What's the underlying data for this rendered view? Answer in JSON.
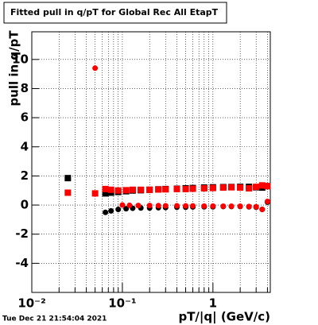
{
  "chart_data": {
    "type": "scatter",
    "title": "Fitted pull in q/pT for Global Rec All EtapT",
    "x_label": "pT/|q| (GeV/c)",
    "y_label": "pull in q/pT",
    "timestamp": "Tue Dec 21 21:54:04 2021",
    "xscale": "log",
    "xlim": [
      0.01,
      4.3
    ],
    "ylim": [
      -6,
      11.9
    ],
    "xticks": [
      {
        "value": 0.01,
        "label": "10⁻²"
      },
      {
        "value": 0.1,
        "label": "10⁻¹"
      },
      1
    ],
    "xminorticks": [
      0.02,
      0.03,
      0.04,
      0.05,
      0.06,
      0.07,
      0.08,
      0.09,
      0.2,
      0.3,
      0.4,
      0.5,
      0.6,
      0.7,
      0.8,
      0.9,
      2,
      3,
      4
    ],
    "yticks": [
      -4,
      -2,
      0,
      2,
      4,
      6,
      8,
      10
    ],
    "grid": true,
    "series": [
      {
        "color": "#000000",
        "marker": "square",
        "x": [
          0.025,
          0.065,
          0.075,
          0.09,
          0.11,
          0.13,
          0.16,
          0.2,
          0.25,
          0.3,
          0.4,
          0.5,
          0.6,
          0.8,
          1.0,
          1.3,
          1.6,
          2.0,
          2.5,
          3.0,
          3.5,
          4.0
        ],
        "values": [
          1.85,
          0.8,
          0.85,
          0.9,
          0.95,
          1.0,
          1.02,
          1.05,
          1.08,
          1.1,
          1.12,
          1.15,
          1.17,
          1.2,
          1.22,
          1.23,
          1.24,
          1.25,
          1.25,
          1.22,
          1.2,
          1.3
        ]
      },
      {
        "color": "#000000",
        "marker": "circle",
        "x": [
          0.065,
          0.075,
          0.09,
          0.11,
          0.13,
          0.16,
          0.2,
          0.25,
          0.3,
          0.4,
          0.5,
          0.6,
          0.8,
          1.0,
          1.3,
          1.6,
          2.0,
          2.5,
          3.0,
          3.5,
          4.0
        ],
        "values": [
          -0.5,
          -0.4,
          -0.3,
          -0.25,
          -0.22,
          -0.2,
          -0.2,
          -0.18,
          -0.17,
          -0.15,
          -0.15,
          -0.13,
          -0.12,
          -0.12,
          -0.1,
          -0.1,
          -0.1,
          -0.12,
          -0.15,
          -0.3,
          0.2
        ]
      },
      {
        "color": "#ff0000",
        "marker": "square",
        "x": [
          0.025,
          0.05,
          0.065,
          0.075,
          0.09,
          0.11,
          0.13,
          0.16,
          0.2,
          0.25,
          0.3,
          0.4,
          0.5,
          0.6,
          0.8,
          1.0,
          1.3,
          1.6,
          2.0,
          2.5,
          3.0,
          3.5,
          4.0
        ],
        "values": [
          0.85,
          0.8,
          1.1,
          1.05,
          1.0,
          1.02,
          1.05,
          1.05,
          1.05,
          1.07,
          1.08,
          1.1,
          1.1,
          1.12,
          1.15,
          1.17,
          1.2,
          1.22,
          1.2,
          1.15,
          1.25,
          1.35,
          1.3
        ]
      },
      {
        "color": "#ff0000",
        "marker": "circle",
        "x": [
          0.05,
          0.1,
          0.12,
          0.15,
          0.2,
          0.25,
          0.3,
          0.4,
          0.5,
          0.6,
          0.8,
          1.0,
          1.3,
          1.6,
          2.0,
          2.5,
          3.0,
          3.5,
          4.0
        ],
        "values": [
          9.4,
          0.0,
          -0.02,
          -0.03,
          -0.03,
          -0.04,
          -0.05,
          -0.05,
          -0.06,
          -0.06,
          -0.07,
          -0.07,
          -0.08,
          -0.08,
          -0.08,
          -0.1,
          -0.12,
          -0.3,
          0.25
        ]
      }
    ]
  }
}
